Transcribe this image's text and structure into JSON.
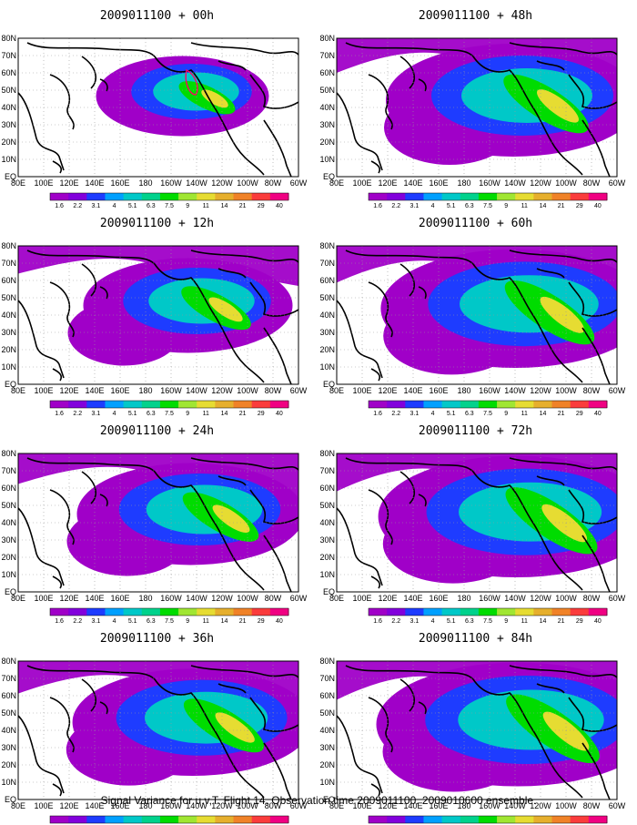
{
  "panels": [
    {
      "title": "2009011100 + 00h",
      "spread": 0.35
    },
    {
      "title": "2009011100 + 48h",
      "spread": 0.8
    },
    {
      "title": "2009011100 + 12h",
      "spread": 0.55
    },
    {
      "title": "2009011100 + 60h",
      "spread": 0.88
    },
    {
      "title": "2009011100 + 24h",
      "spread": 0.65
    },
    {
      "title": "2009011100 + 72h",
      "spread": 0.92
    },
    {
      "title": "2009011100 + 36h",
      "spread": 0.72
    },
    {
      "title": "2009011100 + 84h",
      "spread": 0.95
    }
  ],
  "lat_labels": [
    "80N",
    "70N",
    "60N",
    "50N",
    "40N",
    "30N",
    "20N",
    "10N",
    "EQ"
  ],
  "lon_labels": [
    "80E",
    "100E",
    "120E",
    "140E",
    "160E",
    "180",
    "160W",
    "140W",
    "120W",
    "100W",
    "80W",
    "60W"
  ],
  "colorbar": {
    "labels": [
      "1.6",
      "2.2",
      "3.1",
      "4",
      "5.1",
      "6.3",
      "7.5",
      "9",
      "11",
      "14",
      "21",
      "29",
      "40"
    ],
    "colors": [
      "#a000c8",
      "#8200dc",
      "#1e3cff",
      "#00a0ff",
      "#00c8c8",
      "#00d28c",
      "#00dc00",
      "#a0e632",
      "#e6dc32",
      "#e6af2d",
      "#f08228",
      "#fa3c3c",
      "#f00082"
    ]
  },
  "footer": "Signal Variance for u,v,T. Flight 14. Observation time 2009011100. 2009010600 ensemble."
}
